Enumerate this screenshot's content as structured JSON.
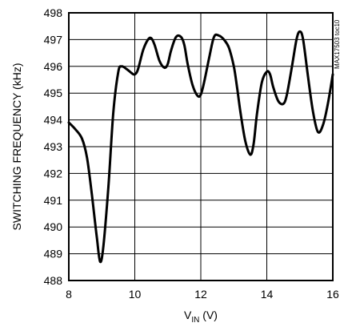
{
  "chart_data": {
    "type": "line",
    "title": "",
    "xlabel_main": "V",
    "xlabel_sub": "IN",
    "xlabel_unit": " (V)",
    "ylabel": "SWITCHING FREQUENCY (kHz)",
    "watermark": "MAX17503 toc10",
    "xlim": [
      8,
      16
    ],
    "ylim": [
      488,
      498
    ],
    "x_ticks": [
      "8",
      "10",
      "12",
      "14",
      "16"
    ],
    "y_ticks": [
      "488",
      "489",
      "490",
      "491",
      "492",
      "493",
      "494",
      "495",
      "496",
      "497",
      "498"
    ],
    "grid": true,
    "series": [
      {
        "x": [
          8.0,
          8.2,
          8.4,
          8.55,
          8.7,
          8.85,
          8.95,
          9.05,
          9.2,
          9.35,
          9.5,
          9.6,
          9.75,
          9.9,
          10.0,
          10.1,
          10.25,
          10.4,
          10.5,
          10.6,
          10.75,
          10.9,
          11.0,
          11.1,
          11.25,
          11.4,
          11.5,
          11.6,
          11.75,
          11.9,
          12.0,
          12.1,
          12.25,
          12.4,
          12.55,
          12.7,
          12.85,
          13.0,
          13.1,
          13.2,
          13.35,
          13.5,
          13.6,
          13.7,
          13.85,
          14.0,
          14.1,
          14.2,
          14.35,
          14.5,
          14.6,
          14.75,
          14.9,
          15.0,
          15.1,
          15.25,
          15.4,
          15.55,
          15.7,
          15.85,
          16.0
        ],
        "y": [
          493.9,
          493.65,
          493.3,
          492.6,
          491.2,
          489.6,
          488.7,
          489.3,
          491.5,
          494.3,
          495.8,
          496.0,
          495.9,
          495.75,
          495.7,
          495.9,
          496.6,
          497.0,
          497.05,
          496.8,
          496.2,
          495.95,
          496.1,
          496.6,
          497.1,
          497.1,
          496.8,
          496.1,
          495.3,
          494.9,
          494.95,
          495.4,
          496.3,
          497.1,
          497.15,
          497.0,
          496.7,
          496.0,
          495.2,
          494.3,
          493.2,
          492.7,
          493.1,
          494.2,
          495.4,
          495.8,
          495.7,
          495.2,
          494.7,
          494.6,
          494.9,
          495.9,
          497.0,
          497.3,
          497.0,
          495.6,
          494.3,
          493.55,
          493.8,
          494.6,
          495.7
        ]
      }
    ]
  }
}
